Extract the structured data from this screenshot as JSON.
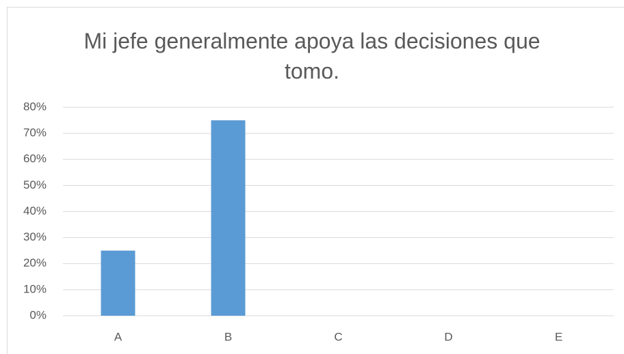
{
  "chart_data": {
    "type": "bar",
    "title": "Mi jefe generalmente apoya las decisiones que tomo.",
    "categories": [
      "A",
      "B",
      "C",
      "D",
      "E"
    ],
    "values": [
      25,
      75,
      0,
      0,
      0
    ],
    "color": "#5b9bd5",
    "ylim": [
      0,
      80
    ],
    "yticks": [
      {
        "value": 0,
        "label": "0%"
      },
      {
        "value": 10,
        "label": "10%"
      },
      {
        "value": 20,
        "label": "20%"
      },
      {
        "value": 30,
        "label": "30%"
      },
      {
        "value": 40,
        "label": "40%"
      },
      {
        "value": 50,
        "label": "50%"
      },
      {
        "value": 60,
        "label": "60%"
      },
      {
        "value": 70,
        "label": "70%"
      },
      {
        "value": 80,
        "label": "80%"
      }
    ],
    "grid": true
  }
}
